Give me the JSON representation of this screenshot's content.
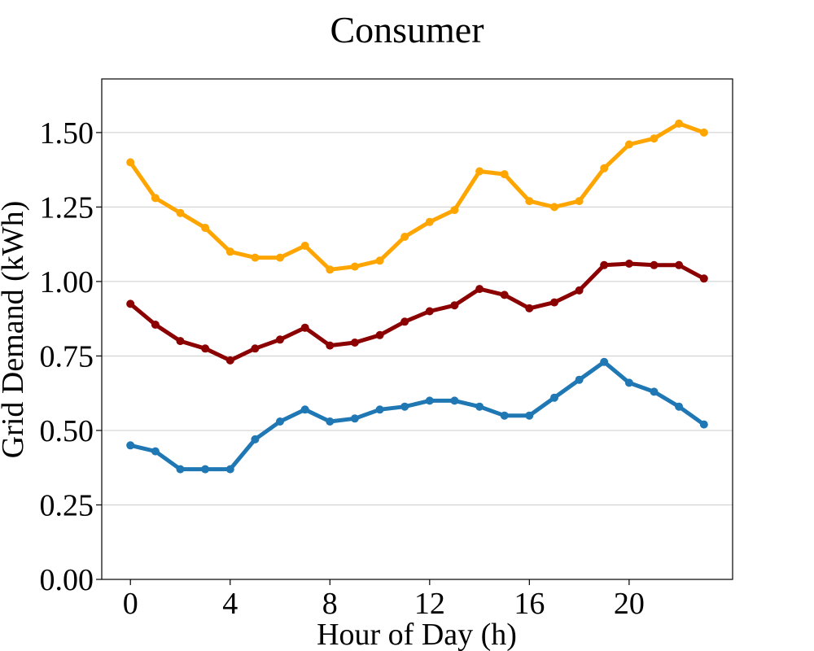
{
  "chart_data": {
    "type": "line",
    "title": "Consumer",
    "xlabel": "Hour of Day (h)",
    "ylabel": "Grid Demand (kWh)",
    "xlim": [
      -1.15,
      24.15
    ],
    "ylim": [
      0,
      1.68
    ],
    "xticks": [
      0,
      4,
      8,
      12,
      16,
      20
    ],
    "yticks": [
      0.0,
      0.25,
      0.5,
      0.75,
      1.0,
      1.25,
      1.5
    ],
    "ytick_labels": [
      "0.00",
      "0.25",
      "0.50",
      "0.75",
      "1.00",
      "1.25",
      "1.50"
    ],
    "grid": "horizontal",
    "x": [
      0,
      1,
      2,
      3,
      4,
      5,
      6,
      7,
      8,
      9,
      10,
      11,
      12,
      13,
      14,
      15,
      16,
      17,
      18,
      19,
      20,
      21,
      22,
      23
    ],
    "series": [
      {
        "color": "#FFA500",
        "values": [
          1.4,
          1.28,
          1.23,
          1.18,
          1.1,
          1.08,
          1.08,
          1.12,
          1.04,
          1.05,
          1.07,
          1.15,
          1.2,
          1.24,
          1.37,
          1.36,
          1.27,
          1.25,
          1.27,
          1.38,
          1.46,
          1.48,
          1.53,
          1.5
        ]
      },
      {
        "color": "#8B0000",
        "values": [
          0.925,
          0.855,
          0.8,
          0.775,
          0.735,
          0.775,
          0.805,
          0.845,
          0.785,
          0.795,
          0.82,
          0.865,
          0.9,
          0.92,
          0.975,
          0.955,
          0.91,
          0.93,
          0.97,
          1.055,
          1.06,
          1.055,
          1.055,
          1.01
        ]
      },
      {
        "color": "#1F77B4",
        "values": [
          0.45,
          0.43,
          0.37,
          0.37,
          0.37,
          0.47,
          0.53,
          0.57,
          0.53,
          0.54,
          0.57,
          0.58,
          0.6,
          0.6,
          0.58,
          0.55,
          0.55,
          0.61,
          0.67,
          0.73,
          0.66,
          0.63,
          0.58,
          0.52
        ]
      }
    ]
  }
}
